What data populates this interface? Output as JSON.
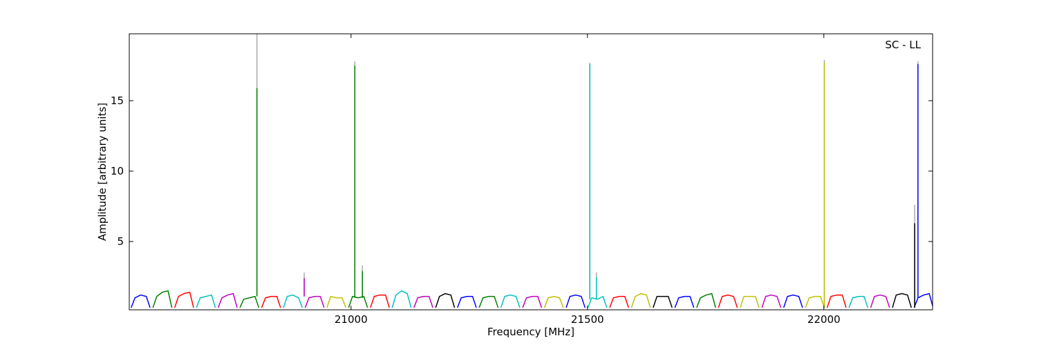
{
  "chart_data": {
    "type": "line",
    "annotation": "SC - LL",
    "xlabel": "Frequency [MHz]",
    "ylabel": "Amplitude [arbitrary units]",
    "xlim": [
      20531,
      22230
    ],
    "ylim": [
      0.15,
      19.75
    ],
    "xticks": [
      21000,
      21500,
      22000
    ],
    "yticks": [
      5,
      10,
      15
    ],
    "grid": false,
    "series": [
      {
        "color": "#0000ff",
        "x": [
          20535,
          20543,
          20555,
          20567,
          20575
        ],
        "values": [
          0.3,
          1.0,
          1.2,
          1.1,
          0.3
        ]
      },
      {
        "color": "#008000",
        "x": [
          20581,
          20589,
          20601,
          20613,
          20621
        ],
        "values": [
          0.3,
          1.1,
          1.4,
          1.5,
          0.3
        ]
      },
      {
        "color": "#ff0000",
        "x": [
          20627,
          20635,
          20647,
          20659,
          20667
        ],
        "values": [
          0.3,
          1.1,
          1.3,
          1.4,
          0.3
        ]
      },
      {
        "color": "#00bfbf",
        "x": [
          20673,
          20681,
          20693,
          20705,
          20713
        ],
        "values": [
          0.3,
          1.0,
          1.1,
          1.2,
          0.3
        ]
      },
      {
        "color": "#bf00bf",
        "x": [
          20719,
          20727,
          20739,
          20751,
          20759
        ],
        "values": [
          0.3,
          1.0,
          1.2,
          1.3,
          0.3
        ]
      },
      {
        "color": "#008000",
        "x": [
          20765,
          20773,
          20785,
          20797,
          20805
        ],
        "values": [
          0.3,
          0.9,
          1.0,
          1.1,
          0.3
        ]
      },
      {
        "color": "#ff0000",
        "x": [
          20811,
          20819,
          20831,
          20843,
          20851
        ],
        "values": [
          0.3,
          1.0,
          1.1,
          1.1,
          0.3
        ]
      },
      {
        "color": "#00bfbf",
        "x": [
          20857,
          20865,
          20877,
          20889,
          20897
        ],
        "values": [
          0.3,
          1.1,
          1.2,
          1.0,
          0.3
        ]
      },
      {
        "color": "#bf00bf",
        "x": [
          20903,
          20911,
          20923,
          20935,
          20943
        ],
        "values": [
          0.3,
          1.0,
          1.1,
          1.1,
          0.3
        ]
      },
      {
        "color": "#bfbf00",
        "x": [
          20949,
          20957,
          20969,
          20981,
          20989
        ],
        "values": [
          0.3,
          1.1,
          1.0,
          1.0,
          0.3
        ]
      },
      {
        "color": "#008000",
        "x": [
          20995,
          21003,
          21015,
          21027,
          21035
        ],
        "values": [
          0.3,
          1.1,
          1.0,
          1.1,
          0.3
        ]
      },
      {
        "color": "#ff0000",
        "x": [
          21041,
          21049,
          21061,
          21073,
          21081
        ],
        "values": [
          0.3,
          1.1,
          1.2,
          1.2,
          0.3
        ]
      },
      {
        "color": "#00bfbf",
        "x": [
          21087,
          21095,
          21107,
          21119,
          21127
        ],
        "values": [
          0.3,
          1.2,
          1.5,
          1.3,
          0.3
        ]
      },
      {
        "color": "#bf00bf",
        "x": [
          21133,
          21141,
          21153,
          21165,
          21173
        ],
        "values": [
          0.3,
          1.0,
          1.1,
          1.1,
          0.3
        ]
      },
      {
        "color": "#000000",
        "x": [
          21179,
          21187,
          21199,
          21211,
          21219
        ],
        "values": [
          0.3,
          1.1,
          1.3,
          1.2,
          0.3
        ]
      },
      {
        "color": "#0000ff",
        "x": [
          21225,
          21233,
          21245,
          21257,
          21265
        ],
        "values": [
          0.3,
          1.0,
          1.1,
          1.1,
          0.3
        ]
      },
      {
        "color": "#008000",
        "x": [
          21271,
          21279,
          21291,
          21303,
          21311
        ],
        "values": [
          0.3,
          1.0,
          1.1,
          1.1,
          0.3
        ]
      },
      {
        "color": "#00bfbf",
        "x": [
          21317,
          21325,
          21337,
          21349,
          21357
        ],
        "values": [
          0.3,
          1.1,
          1.2,
          1.1,
          0.3
        ]
      },
      {
        "color": "#bf00bf",
        "x": [
          21363,
          21371,
          21383,
          21395,
          21403
        ],
        "values": [
          0.3,
          1.0,
          1.1,
          1.1,
          0.3
        ]
      },
      {
        "color": "#bfbf00",
        "x": [
          21409,
          21417,
          21429,
          21441,
          21449
        ],
        "values": [
          0.3,
          1.0,
          1.1,
          1.0,
          0.3
        ]
      },
      {
        "color": "#0000ff",
        "x": [
          21455,
          21463,
          21475,
          21487,
          21495
        ],
        "values": [
          0.3,
          1.1,
          1.2,
          1.1,
          0.3
        ]
      },
      {
        "color": "#00bfbf",
        "x": [
          21501,
          21509,
          21521,
          21533,
          21541
        ],
        "values": [
          0.3,
          1.0,
          0.9,
          1.1,
          0.3
        ]
      },
      {
        "color": "#ff0000",
        "x": [
          21547,
          21555,
          21567,
          21579,
          21587
        ],
        "values": [
          0.3,
          1.0,
          1.1,
          1.1,
          0.3
        ]
      },
      {
        "color": "#bfbf00",
        "x": [
          21593,
          21601,
          21613,
          21625,
          21633
        ],
        "values": [
          0.3,
          1.1,
          1.3,
          1.2,
          0.3
        ]
      },
      {
        "color": "#000000",
        "x": [
          21639,
          21647,
          21659,
          21671,
          21679
        ],
        "values": [
          0.3,
          1.1,
          1.1,
          1.1,
          0.3
        ]
      },
      {
        "color": "#0000ff",
        "x": [
          21685,
          21693,
          21705,
          21717,
          21725
        ],
        "values": [
          0.3,
          1.0,
          1.1,
          1.1,
          0.3
        ]
      },
      {
        "color": "#008000",
        "x": [
          21731,
          21739,
          21751,
          21763,
          21771
        ],
        "values": [
          0.3,
          1.0,
          1.2,
          1.3,
          0.3
        ]
      },
      {
        "color": "#ff0000",
        "x": [
          21777,
          21785,
          21797,
          21809,
          21817
        ],
        "values": [
          0.3,
          1.1,
          1.2,
          1.1,
          0.3
        ]
      },
      {
        "color": "#bfbf00",
        "x": [
          21823,
          21831,
          21843,
          21855,
          21863
        ],
        "values": [
          0.3,
          1.1,
          1.1,
          1.1,
          0.3
        ]
      },
      {
        "color": "#bf00bf",
        "x": [
          21869,
          21877,
          21889,
          21901,
          21909
        ],
        "values": [
          0.3,
          1.1,
          1.2,
          1.1,
          0.3
        ]
      },
      {
        "color": "#0000ff",
        "x": [
          21915,
          21923,
          21935,
          21947,
          21955
        ],
        "values": [
          0.3,
          1.1,
          1.2,
          1.1,
          0.3
        ]
      },
      {
        "color": "#bfbf00",
        "x": [
          21961,
          21969,
          21981,
          21993,
          22001
        ],
        "values": [
          0.3,
          1.0,
          1.1,
          1.1,
          0.3
        ]
      },
      {
        "color": "#ff0000",
        "x": [
          22007,
          22015,
          22027,
          22039,
          22047
        ],
        "values": [
          0.3,
          1.1,
          1.2,
          1.2,
          0.3
        ]
      },
      {
        "color": "#00bfbf",
        "x": [
          22053,
          22061,
          22073,
          22085,
          22093
        ],
        "values": [
          0.3,
          1.0,
          1.1,
          1.1,
          0.3
        ]
      },
      {
        "color": "#bf00bf",
        "x": [
          22099,
          22107,
          22119,
          22131,
          22139
        ],
        "values": [
          0.3,
          1.1,
          1.2,
          1.1,
          0.3
        ]
      },
      {
        "color": "#000000",
        "x": [
          22145,
          22153,
          22165,
          22177,
          22185
        ],
        "values": [
          0.3,
          1.2,
          1.3,
          1.2,
          0.3
        ]
      },
      {
        "color": "#0000ff",
        "x": [
          22191,
          22199,
          22211,
          22223,
          22231
        ],
        "values": [
          0.3,
          1.0,
          1.2,
          1.3,
          0.3
        ]
      },
      {
        "color": "#aaaaaa",
        "x": [
          20801,
          20801
        ],
        "values": [
          1.1,
          19.75
        ]
      },
      {
        "color": "#008000",
        "x": [
          20801,
          20801
        ],
        "values": [
          1.1,
          15.9
        ]
      },
      {
        "color": "#aaaaaa",
        "x": [
          20901,
          20901
        ],
        "values": [
          1.1,
          2.8
        ]
      },
      {
        "color": "#bf00bf",
        "x": [
          20901,
          20901
        ],
        "values": [
          1.1,
          2.4
        ]
      },
      {
        "color": "#aaaaaa",
        "x": [
          21008,
          21008
        ],
        "values": [
          1.0,
          17.8
        ]
      },
      {
        "color": "#008000",
        "x": [
          21008,
          21008
        ],
        "values": [
          1.0,
          17.5
        ]
      },
      {
        "color": "#aaaaaa",
        "x": [
          21024,
          21024
        ],
        "values": [
          1.0,
          3.3
        ]
      },
      {
        "color": "#008000",
        "x": [
          21024,
          21024
        ],
        "values": [
          1.0,
          2.9
        ]
      },
      {
        "color": "#aaaaaa",
        "x": [
          21505,
          21505
        ],
        "values": [
          0.9,
          17.7
        ]
      },
      {
        "color": "#00bfbf",
        "x": [
          21505,
          21505
        ],
        "values": [
          0.9,
          17.6
        ]
      },
      {
        "color": "#aaaaaa",
        "x": [
          21519,
          21519
        ],
        "values": [
          0.9,
          2.8
        ]
      },
      {
        "color": "#00bfbf",
        "x": [
          21519,
          21519
        ],
        "values": [
          0.9,
          2.5
        ]
      },
      {
        "color": "#aaaaaa",
        "x": [
          22001,
          22001
        ],
        "values": [
          0.3,
          17.9
        ]
      },
      {
        "color": "#bfbf00",
        "x": [
          22001,
          22001
        ],
        "values": [
          0.3,
          17.7
        ]
      },
      {
        "color": "#aaaaaa",
        "x": [
          22192,
          22192
        ],
        "values": [
          0.3,
          7.6
        ]
      },
      {
        "color": "#000000",
        "x": [
          22192,
          22192
        ],
        "values": [
          0.3,
          6.3
        ]
      },
      {
        "color": "#aaaaaa",
        "x": [
          22199,
          22199
        ],
        "values": [
          1.0,
          17.8
        ]
      },
      {
        "color": "#0000ff",
        "x": [
          22199,
          22199
        ],
        "values": [
          1.0,
          17.6
        ]
      }
    ]
  }
}
